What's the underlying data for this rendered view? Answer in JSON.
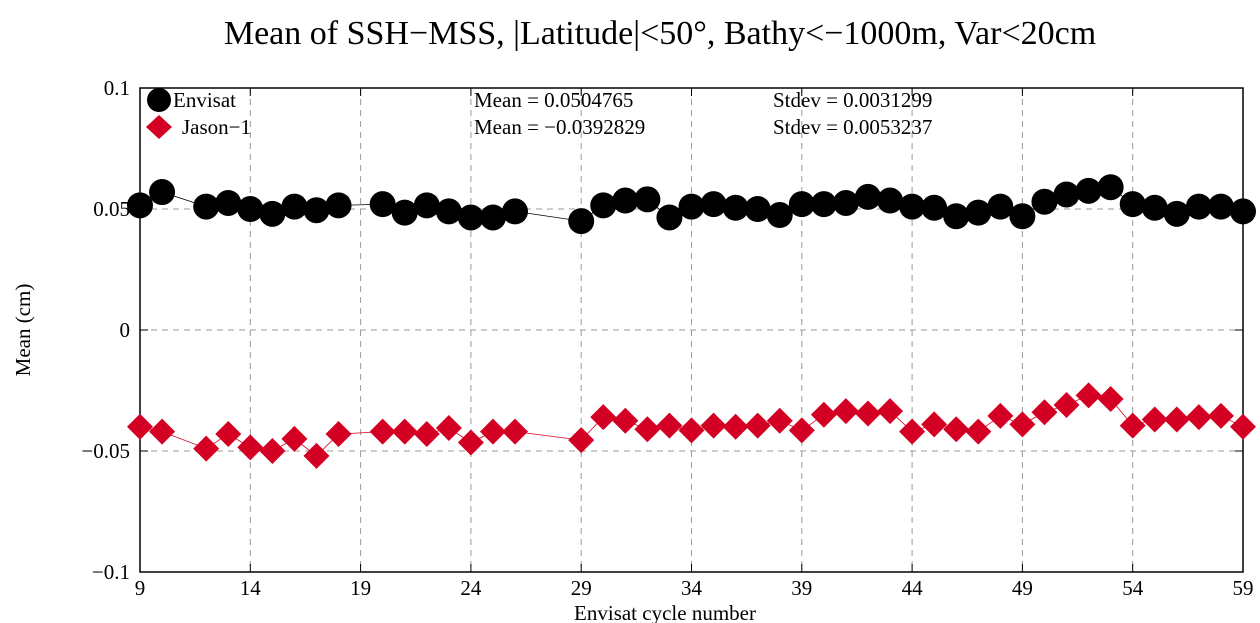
{
  "chart_data": {
    "type": "scatter",
    "title": "Mean of SSH−MSS, |Latitude|<50°, Bathy<−1000m, Var<20cm",
    "xlabel": "Envisat cycle number",
    "ylabel": "Mean (cm)",
    "xlim": [
      9,
      59
    ],
    "ylim": [
      -0.1,
      0.1
    ],
    "x_ticks": [
      9,
      14,
      19,
      24,
      29,
      34,
      39,
      44,
      49,
      54,
      59
    ],
    "x_tick_labels": [
      "9",
      "14",
      "19",
      "24",
      "29",
      "34",
      "39",
      "44",
      "49",
      "54",
      "59"
    ],
    "y_ticks": [
      -0.1,
      -0.05,
      0,
      0.05,
      0.1
    ],
    "y_tick_labels": [
      "−0.1",
      "−0.05",
      "0",
      "0.05",
      "0.1"
    ],
    "grid": true,
    "legend_position": "top-left",
    "series": [
      {
        "name": "Envisat",
        "marker": "circle",
        "color": "#000000",
        "x": [
          9,
          10,
          12,
          13,
          14,
          15,
          16,
          17,
          18,
          20,
          21,
          22,
          23,
          24,
          25,
          26,
          29,
          30,
          31,
          32,
          33,
          34,
          35,
          36,
          37,
          38,
          39,
          40,
          41,
          42,
          43,
          44,
          45,
          46,
          47,
          48,
          49,
          50,
          51,
          52,
          53,
          54,
          55,
          56,
          57,
          58,
          59
        ],
        "y": [
          0.0515,
          0.057,
          0.051,
          0.0525,
          0.05,
          0.048,
          0.051,
          0.0495,
          0.0515,
          0.052,
          0.0485,
          0.0515,
          0.049,
          0.0465,
          0.0465,
          0.049,
          0.045,
          0.0515,
          0.0535,
          0.054,
          0.0465,
          0.051,
          0.052,
          0.0505,
          0.05,
          0.0475,
          0.052,
          0.052,
          0.0525,
          0.055,
          0.0535,
          0.051,
          0.0505,
          0.047,
          0.0485,
          0.051,
          0.047,
          0.053,
          0.056,
          0.0575,
          0.059,
          0.052,
          0.0505,
          0.048,
          0.051,
          0.051,
          0.049
        ],
        "stat_mean_label": "Mean = 0.0504765",
        "stat_stdev_label": "Stdev = 0.0031299"
      },
      {
        "name": "Jason−1",
        "marker": "diamond",
        "color": "#d40023",
        "x": [
          9,
          10,
          12,
          13,
          14,
          15,
          16,
          17,
          18,
          20,
          21,
          22,
          23,
          24,
          25,
          26,
          29,
          30,
          31,
          32,
          33,
          34,
          35,
          36,
          37,
          38,
          39,
          40,
          41,
          42,
          43,
          44,
          45,
          46,
          47,
          48,
          49,
          50,
          51,
          52,
          53,
          54,
          55,
          56,
          57,
          58,
          59
        ],
        "y": [
          -0.04,
          -0.042,
          -0.049,
          -0.043,
          -0.0485,
          -0.05,
          -0.045,
          -0.052,
          -0.043,
          -0.042,
          -0.042,
          -0.043,
          -0.0405,
          -0.0465,
          -0.042,
          -0.042,
          -0.0455,
          -0.036,
          -0.0375,
          -0.041,
          -0.0395,
          -0.0415,
          -0.0395,
          -0.04,
          -0.0395,
          -0.0375,
          -0.0415,
          -0.035,
          -0.0335,
          -0.0345,
          -0.0335,
          -0.042,
          -0.039,
          -0.041,
          -0.042,
          -0.0355,
          -0.039,
          -0.034,
          -0.031,
          -0.027,
          -0.0285,
          -0.0395,
          -0.037,
          -0.037,
          -0.036,
          -0.0355,
          -0.04
        ],
        "stat_mean_label": "Mean = −0.0392829",
        "stat_stdev_label": "Stdev = 0.0053237"
      }
    ]
  }
}
